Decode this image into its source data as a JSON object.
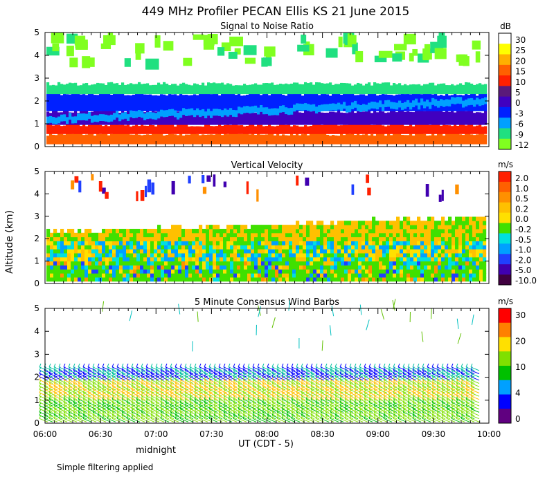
{
  "figure": {
    "title": "449 MHz Profiler PECAN Ellis KS 21 June 2015",
    "ylabel": "Altitude (km)",
    "xlabel": "UT  (CDT - 5)",
    "midnight_label": "midnight",
    "footnote": "Simple filtering applied"
  },
  "chart_data": [
    {
      "type": "heatmap",
      "title": "Signal to Noise Ratio",
      "unit": "dB",
      "x_ticks": [
        "06:00",
        "06:30",
        "07:00",
        "07:30",
        "08:00",
        "08:30",
        "09:00",
        "09:30",
        "10:00"
      ],
      "y_ticks": [
        "0",
        "1",
        "2",
        "3",
        "4",
        "5"
      ],
      "ylim": [
        0,
        5
      ],
      "colorbar": {
        "labels": [
          "30",
          "25",
          "20",
          "15",
          "10",
          "5",
          "0",
          "-3",
          "-6",
          "-9",
          "-12"
        ],
        "colors": [
          "#ffffff",
          "#ffff00",
          "#ffb000",
          "#ff6000",
          "#ff2000",
          "#5a1a7a",
          "#4000c0",
          "#0020ff",
          "#00a0ff",
          "#20e080",
          "#80ff20"
        ]
      },
      "layers": [
        {
          "altitude_km": [
            0.0,
            0.5
          ],
          "snr_db": 20
        },
        {
          "altitude_km": [
            0.5,
            1.0
          ],
          "snr_db": 12
        },
        {
          "altitude_km": [
            1.0,
            1.6
          ],
          "snr_db": 3
        },
        {
          "altitude_km": [
            1.6,
            2.3
          ],
          "snr_db": -3
        },
        {
          "altitude_km": [
            2.3,
            2.8
          ],
          "snr_db": -9
        },
        {
          "altitude_km": [
            3.8,
            5.0
          ],
          "snr_db": -12
        }
      ]
    },
    {
      "type": "heatmap",
      "title": "Vertical Velocity",
      "unit": "m/s",
      "x_ticks": [
        "06:00",
        "06:30",
        "07:00",
        "07:30",
        "08:00",
        "08:30",
        "09:00",
        "09:30",
        "10:00"
      ],
      "y_ticks": [
        "0",
        "1",
        "2",
        "3",
        "4",
        "5"
      ],
      "ylim": [
        0,
        5
      ],
      "colorbar": {
        "labels": [
          "2.0",
          "1.0",
          "0.5",
          "0.2",
          "0.0",
          "-0.2",
          "-0.5",
          "-1.0",
          "-2.0",
          "-5.0",
          "-10.0"
        ],
        "colors": [
          "#ff2000",
          "#ff6000",
          "#ff9000",
          "#ffc000",
          "#ffe000",
          "#40e000",
          "#00e0e0",
          "#00a0ff",
          "#2040ff",
          "#4000b0",
          "#400040"
        ]
      },
      "layers": [
        {
          "altitude_km": [
            0.0,
            1.0
          ],
          "w_ms": -0.2
        },
        {
          "altitude_km": [
            1.0,
            2.0
          ],
          "w_ms": 0.0
        },
        {
          "altitude_km": [
            2.0,
            2.8
          ],
          "w_ms": 0.2
        }
      ]
    },
    {
      "type": "scatter",
      "title": "5 Minute Consensus Wind Barbs",
      "unit": "m/s",
      "x_ticks": [
        "06:00",
        "06:30",
        "07:00",
        "07:30",
        "08:00",
        "08:30",
        "09:00",
        "09:30",
        "10:00"
      ],
      "y_ticks": [
        "0",
        "1",
        "2",
        "3",
        "4",
        "5"
      ],
      "ylim": [
        0,
        5
      ],
      "colorbar": {
        "labels": [
          "30",
          "20",
          "10",
          "4",
          "0"
        ],
        "colors": [
          "#ff0000",
          "#ff8000",
          "#ffe000",
          "#80e000",
          "#00c000",
          "#00a0ff",
          "#0000ff",
          "#600080"
        ]
      },
      "layers": [
        {
          "altitude_km": [
            0.0,
            1.0
          ],
          "speed_ms": 12
        },
        {
          "altitude_km": [
            1.0,
            1.8
          ],
          "speed_ms": 16
        },
        {
          "altitude_km": [
            1.8,
            2.4
          ],
          "speed_ms": 6
        }
      ]
    }
  ]
}
